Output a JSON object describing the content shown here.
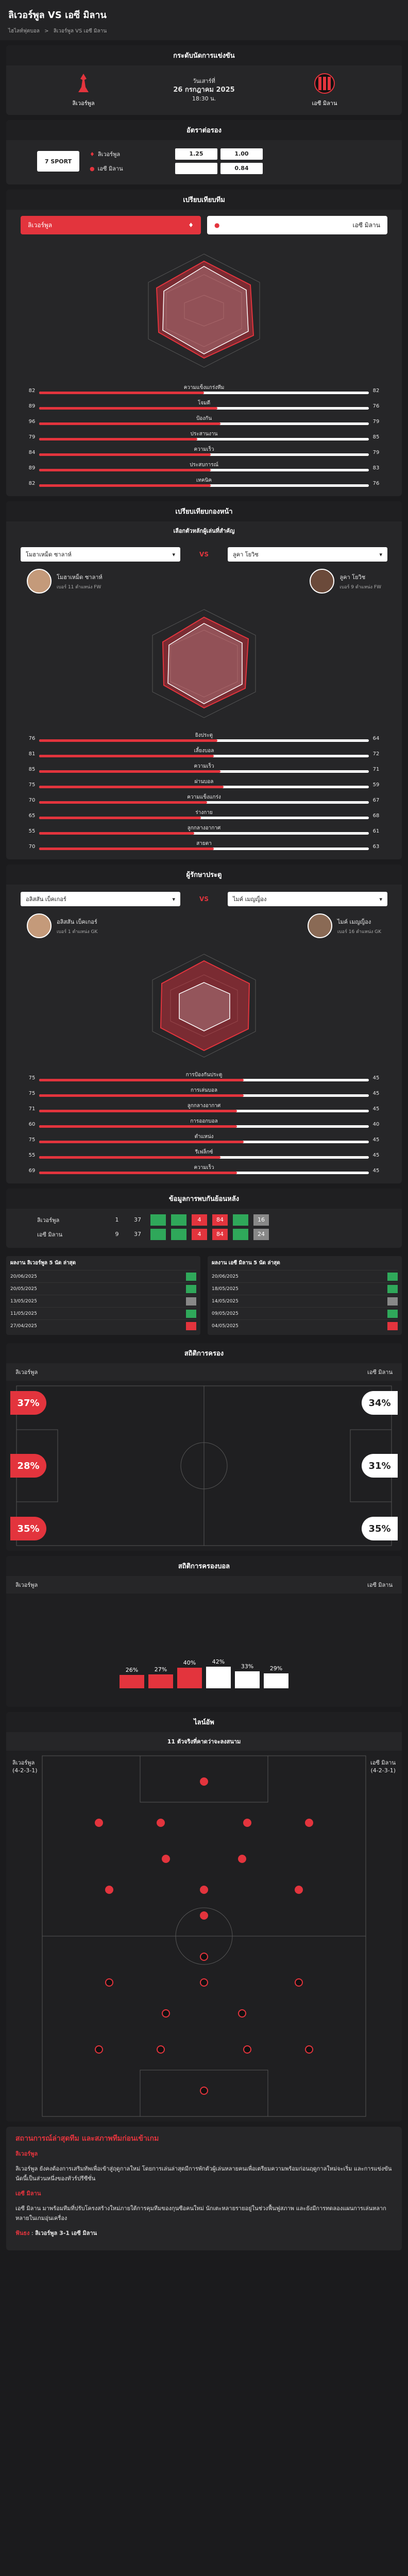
{
  "header": {
    "title": "ลิเวอร์พูล VS เอซี มิลาน",
    "crumbs": [
      "ไฮไลท์ฟุตบอล",
      ">",
      "ลิเวอร์พูล VS เอซี มิลาน"
    ]
  },
  "match": {
    "card_title": "กระดับนัดการแข่งขัน",
    "home": "ลิเวอร์พูล",
    "away": "เอซี มิลาน",
    "round": "วันเสาร์ที่",
    "date": "26 กรกฎาคม 2025",
    "time": "18:30 น."
  },
  "odds": {
    "title": "อัตราต่อรอง",
    "book": "7 SPORT",
    "home": "ลิเวอร์พูล",
    "away": "เอซี มิลาน",
    "h1": "1.25",
    "h2": "1.00",
    "a1": "",
    "a2": "0.84"
  },
  "compare": {
    "title": "เปรียบเทียบทีม",
    "home": "ลิเวอร์พูล",
    "away": "เอซี มิลาน"
  },
  "team_bars": [
    {
      "l": "82",
      "label": "ความแข็งแกร่งทีม",
      "r": "82",
      "pct": 0.5
    },
    {
      "l": "89",
      "label": "โจมตี",
      "r": "76",
      "pct": 0.54
    },
    {
      "l": "96",
      "label": "ป้องกัน",
      "r": "79",
      "pct": 0.55
    },
    {
      "l": "79",
      "label": "ประสานงาน",
      "r": "85",
      "pct": 0.48
    },
    {
      "l": "84",
      "label": "ความเร็ว",
      "r": "79",
      "pct": 0.52
    },
    {
      "l": "89",
      "label": "ประสบการณ์",
      "r": "83",
      "pct": 0.52
    },
    {
      "l": "82",
      "label": "เทคนิค",
      "r": "76",
      "pct": 0.52
    }
  ],
  "fwd": {
    "title": "เปรียบเทียบกองหน้า",
    "section": "เลือกตัวหลักผู้เล่นที่สำคัญ",
    "sel_home": "โมฮาเหม็ด ซาลาห์",
    "sel_away": "ลูคา โยวิช",
    "vs": "VS",
    "p1": "โมฮาเหม็ด ซาลาห์",
    "p1s": "เบอร์ 11  ตำแหน่ง FW",
    "p2": "ลูคา โยวิช",
    "p2s": "เบอร์ 9  ตำแหน่ง FW"
  },
  "fwd_bars": [
    {
      "l": "76",
      "label": "ยิงประตู",
      "r": "64",
      "pct": 0.54
    },
    {
      "l": "81",
      "label": "เลี้ยงบอล",
      "r": "72",
      "pct": 0.53
    },
    {
      "l": "85",
      "label": "ความเร็ว",
      "r": "71",
      "pct": 0.55
    },
    {
      "l": "75",
      "label": "ผ่านบอล",
      "r": "59",
      "pct": 0.56
    },
    {
      "l": "70",
      "label": "ความแข็งแกร่ง",
      "r": "67",
      "pct": 0.51
    },
    {
      "l": "65",
      "label": "ร่างกาย",
      "r": "68",
      "pct": 0.49
    },
    {
      "l": "55",
      "label": "ลูกกลางอากาศ",
      "r": "61",
      "pct": 0.47
    },
    {
      "l": "70",
      "label": "สายตา",
      "r": "63",
      "pct": 0.53
    }
  ],
  "def": {
    "title": "ผู้รักษาประตู",
    "sel_home": "อลิสสัน เบ็คเกอร์",
    "sel_away": "ไมค์ เมญญ็อง",
    "p1": "อลิสสัน เบ็คเกอร์",
    "p1s": "เบอร์ 1  ตำแหน่ง GK",
    "p2": "ไมค์ เมญญ็อง",
    "p2s": "เบอร์ 16  ตำแหน่ง GK"
  },
  "def_bars": [
    {
      "l": "75",
      "label": "การป้องกันประตู",
      "r": "45",
      "pct": 0.62
    },
    {
      "l": "75",
      "label": "การเล่นบอล",
      "r": "45",
      "pct": 0.62
    },
    {
      "l": "71",
      "label": "ลูกกลางอากาศ",
      "r": "45",
      "pct": 0.6
    },
    {
      "l": "60",
      "label": "การออกบอล",
      "r": "40",
      "pct": 0.6
    },
    {
      "l": "75",
      "label": "ตำแหน่ง",
      "r": "45",
      "pct": 0.62
    },
    {
      "l": "55",
      "label": "รีเฟล็กซ์",
      "r": "45",
      "pct": 0.55
    },
    {
      "l": "69",
      "label": "ความเร็ว",
      "r": "45",
      "pct": 0.6
    }
  ],
  "h2h": {
    "title": "ข้อมูลการพบกันย้อนหลัง",
    "rows": [
      {
        "nm": "ลิเวอร์พูล",
        "c": [
          "1",
          "37",
          "",
          "",
          "4",
          "84",
          "",
          "16"
        ]
      },
      {
        "nm": "เอซี มิลาน",
        "c": [
          "9",
          "37",
          "",
          "",
          "4",
          "84",
          "",
          "24"
        ]
      }
    ]
  },
  "form": {
    "home_title": "ผลงาน ลิเวอร์พูล 5 นัด ล่าสุด",
    "away_title": "ผลงาน เอซี มิลาน 5 นัด ล่าสุด",
    "home": [
      "20/06/2025",
      "20/05/2025",
      "13/05/2025",
      "11/05/2025",
      "27/04/2025"
    ],
    "away": [
      "20/06/2025",
      "18/05/2025",
      "14/05/2025",
      "09/05/2025",
      "04/05/2025"
    ]
  },
  "stats": {
    "title": "สถิติการครอง",
    "home": "ลิเวอร์พูล",
    "away": "เอซี มิลาน",
    "h": [
      "37%",
      "28%",
      "35%"
    ],
    "a": [
      "34%",
      "31%",
      "35%"
    ]
  },
  "attack": {
    "title": "สถิติการครองบอล",
    "home": "ลิเวอร์พูล",
    "away": "เอซี มิลาน",
    "vals": [
      "26%",
      "27%",
      "40%",
      "42%",
      "33%",
      "29%"
    ]
  },
  "lineup": {
    "title": "ไลน์อัพ",
    "sub": "11 ตัวจริงที่คาดว่าจะลงสนาม",
    "home": "ลิเวอร์พูล",
    "hf": "(4-2-3-1)",
    "away": "เอซี มิลาน",
    "af": "(4-2-3-1)"
  },
  "article": {
    "title": "สถานการณ์ล่าสุดทีม และสภาพทีมก่อนเข้าเกม",
    "body": [
      "ลิเวอร์พูล",
      "ลิเวอร์พูล ยังคงต้องการเสริมทัพเพื่อเข้าสู่ฤดูกาลใหม่ โดยการเล่นล่าสุดมีการพักตัวผู้เล่นหลายคนเพื่อเตรียมความพร้อมก่อนฤดูกาลใหม่จะเริ่ม และการแข่งขันนัดนี้เป็นส่วนหนึ่งของทัวร์ปรีซีซั่น",
      "เอซี มิลาน",
      "เอซี มิลาน มาพร้อมทีมที่ปรับโครงสร้างใหม่ภายใต้การคุมทีมของกุนซือคนใหม่ นักเตะหลายรายอยู่ในช่วงฟื้นฟูสภาพ และยังมีการทดลองแผนการเล่นหลากหลายในเกมอุ่นเครื่อง"
    ],
    "pred_label": "ฟันธง",
    "pred": "ลิเวอร์พูล 3-1 เอซี มิลาน"
  }
}
